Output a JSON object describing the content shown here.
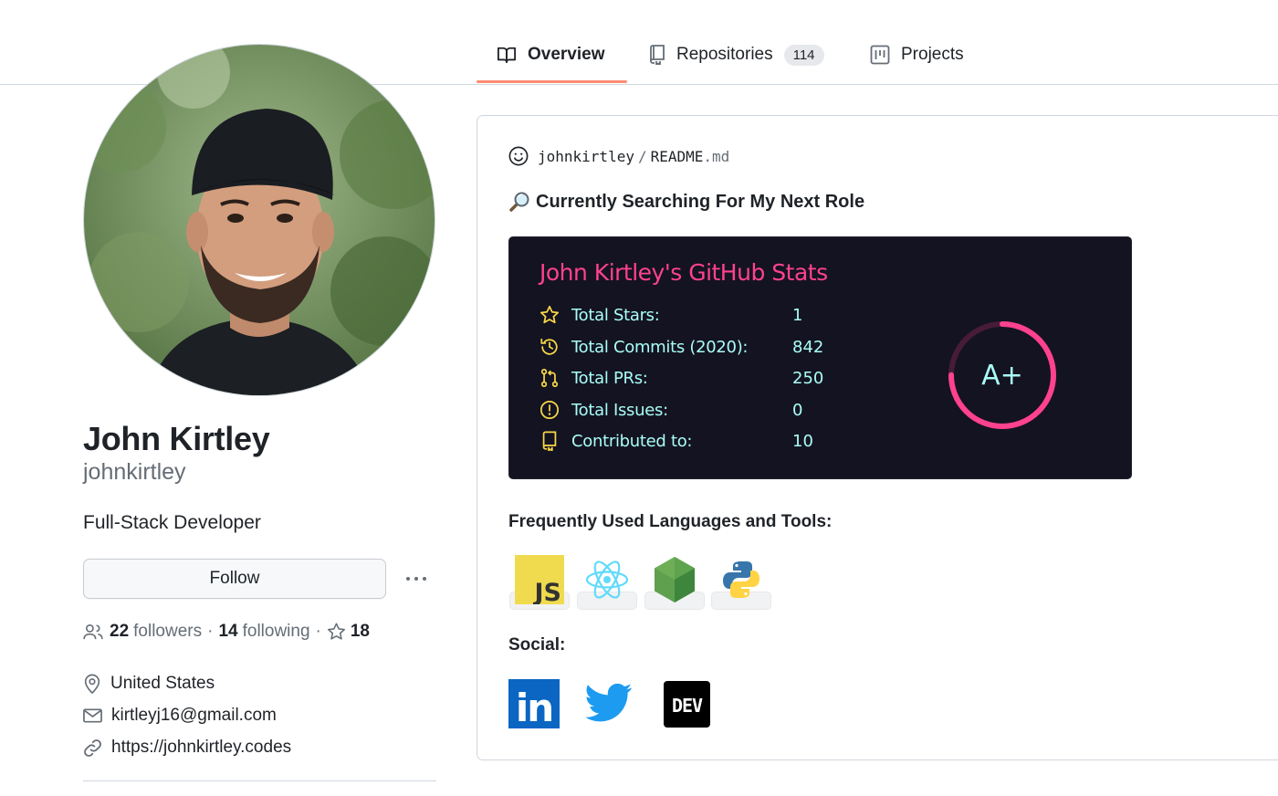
{
  "tabs": [
    {
      "label": "Overview",
      "icon": "book-icon",
      "active": true
    },
    {
      "label": "Repositories",
      "icon": "repo-icon",
      "count": "114"
    },
    {
      "label": "Projects",
      "icon": "project-icon"
    }
  ],
  "profile": {
    "name": "John Kirtley",
    "login": "johnkirtley",
    "bio": "Full-Stack Developer",
    "follow_label": "Follow",
    "followers_count": "22",
    "followers_label": "followers",
    "following_count": "14",
    "following_label": "following",
    "stars_count": "18",
    "location": "United States",
    "email": "kirtleyj16@gmail.com",
    "website": "https://johnkirtley.codes"
  },
  "readme": {
    "owner": "johnkirtley",
    "separator": "/",
    "file_base": "README",
    "file_ext": ".md",
    "heading": "Currently Searching For My Next Role",
    "stats_card": {
      "title": "John Kirtley's GitHub Stats",
      "rows": [
        {
          "label": "Total Stars:",
          "value": "1",
          "icon": "star-icon"
        },
        {
          "label": "Total Commits (2020):",
          "value": "842",
          "icon": "history-icon"
        },
        {
          "label": "Total PRs:",
          "value": "250",
          "icon": "pull-request-icon"
        },
        {
          "label": "Total Issues:",
          "value": "0",
          "icon": "issue-icon"
        },
        {
          "label": "Contributed to:",
          "value": "10",
          "icon": "repo-icon"
        }
      ],
      "rank": "A+",
      "rank_progress": 0.75,
      "colors": {
        "background": "#141321",
        "title": "#fe428e",
        "text": "#a9fef7",
        "icon": "#f8d847",
        "ring": "#fe428e"
      }
    },
    "languages_heading": "Frequently Used Languages and Tools:",
    "languages": [
      {
        "name": "javascript-logo",
        "text": "JS"
      },
      {
        "name": "react-logo"
      },
      {
        "name": "nodejs-logo"
      },
      {
        "name": "python-logo"
      }
    ],
    "social_heading": "Social:",
    "social": [
      {
        "name": "linkedin-logo",
        "text": "in"
      },
      {
        "name": "twitter-logo"
      },
      {
        "name": "dev-logo",
        "text": "DEV"
      }
    ]
  }
}
